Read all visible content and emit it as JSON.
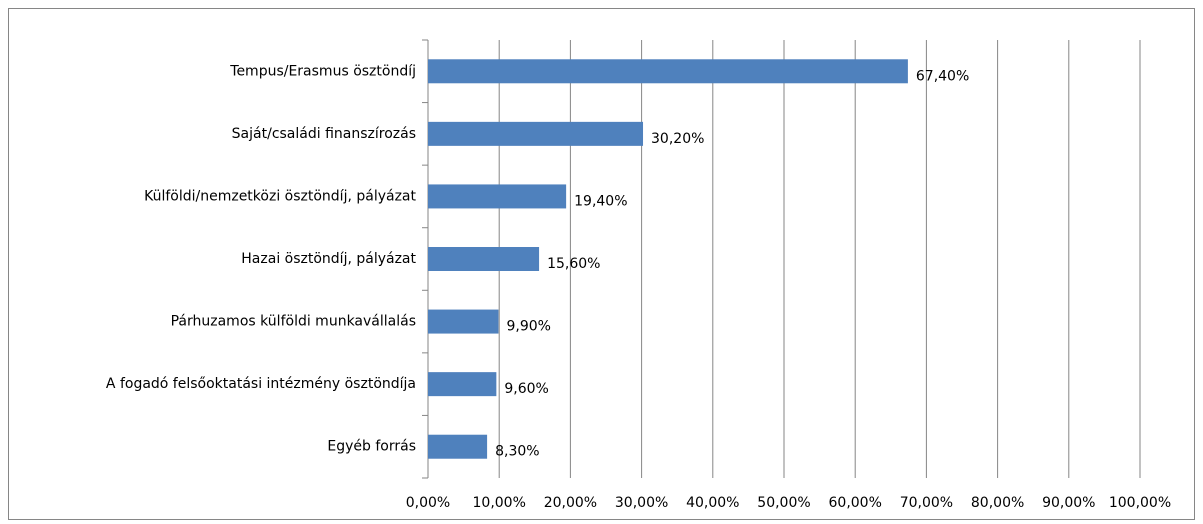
{
  "chart_data": {
    "type": "bar",
    "orientation": "horizontal",
    "categories": [
      "Tempus/Erasmus ösztöndíj",
      "Saját/családi finanszírozás",
      "Külföldi/nemzetközi ösztöndíj, pályázat",
      "Hazai ösztöndíj, pályázat",
      "Párhuzamos külföldi munkavállalás",
      "A fogadó felsőoktatási intézmény ösztöndíja",
      "Egyéb forrás"
    ],
    "values": [
      67.4,
      30.2,
      19.4,
      15.6,
      9.9,
      9.6,
      8.3
    ],
    "value_labels": [
      "67,40%",
      "30,20%",
      "19,40%",
      "15,60%",
      "9,90%",
      "9,60%",
      "8,30%"
    ],
    "color": "#4f81bd",
    "xlim": [
      0,
      100
    ],
    "xticks": [
      {
        "value": 0,
        "label": "0,00%"
      },
      {
        "value": 10,
        "label": "10,00%"
      },
      {
        "value": 20,
        "label": "20,00%"
      },
      {
        "value": 30,
        "label": "30,00%"
      },
      {
        "value": 40,
        "label": "40,00%"
      },
      {
        "value": 50,
        "label": "50,00%"
      },
      {
        "value": 60,
        "label": "60,00%"
      },
      {
        "value": 70,
        "label": "70,00%"
      },
      {
        "value": 80,
        "label": "80,00%"
      },
      {
        "value": 90,
        "label": "90,00%"
      },
      {
        "value": 100,
        "label": "100,00%"
      }
    ],
    "grid": true
  }
}
